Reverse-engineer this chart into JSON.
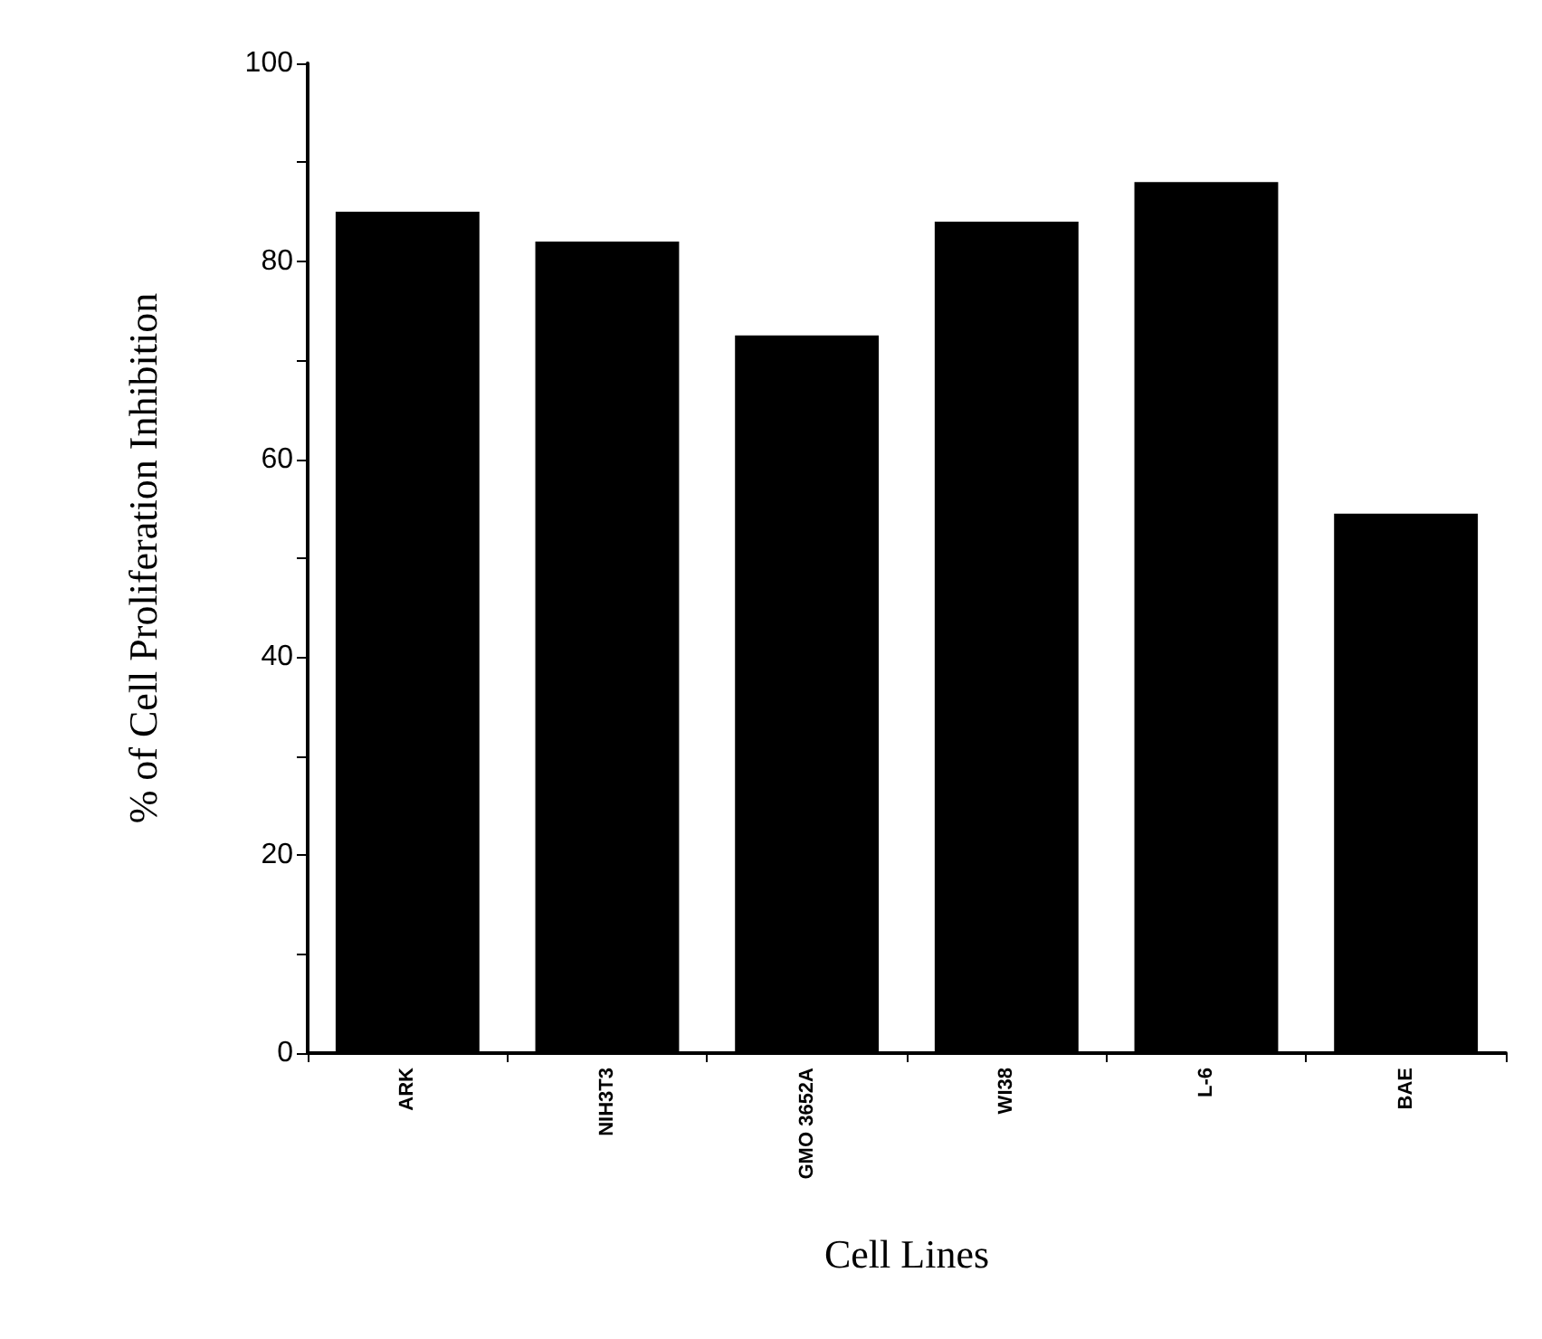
{
  "chart_data": {
    "type": "bar",
    "xlabel": "Cell Lines",
    "ylabel": "% of Cell Proliferation Inhibition",
    "categories": [
      "ARK",
      "NIH3T3",
      "GMO 3652A",
      "WI38",
      "L-6",
      "BAE"
    ],
    "values": [
      85,
      82,
      72.5,
      84,
      88,
      54.5
    ],
    "color": "#000000",
    "ylim": [
      0,
      100
    ],
    "yticks": [
      0,
      {
        "value": 10,
        "label": null
      },
      20,
      {
        "value": 30,
        "label": null
      },
      40,
      {
        "value": 50,
        "label": null
      },
      60,
      {
        "value": 70,
        "label": null
      },
      80,
      {
        "value": 90,
        "label": null
      },
      100
    ],
    "grid": false
  }
}
